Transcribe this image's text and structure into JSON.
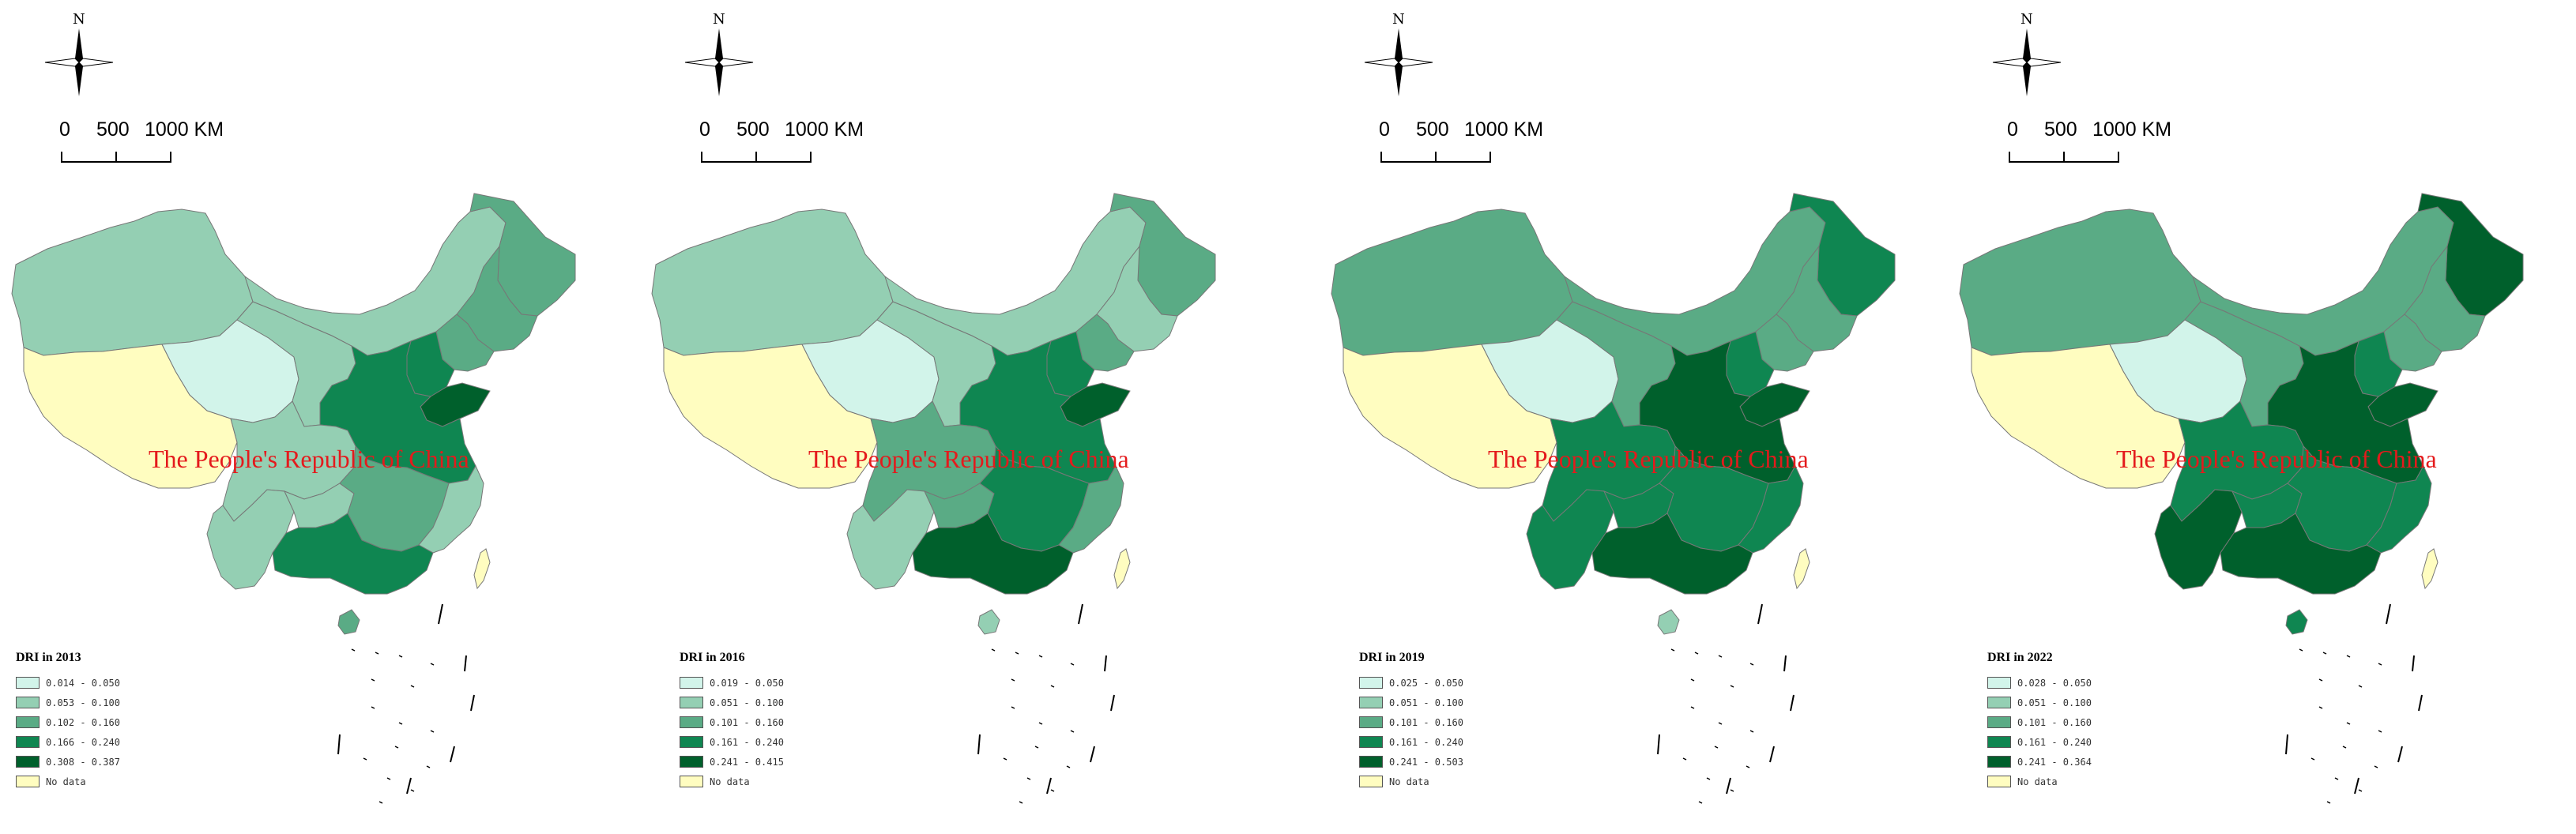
{
  "compass_label": "N",
  "scale": {
    "ticks": [
      "0",
      "500",
      "1000 KM"
    ]
  },
  "country_label": "The People's Republic of China",
  "colors": {
    "class1": "#d2f4ea",
    "class2": "#94cfb3",
    "class3": "#5aab85",
    "class4": "#0f8651",
    "class5": "#00602c",
    "nodata": "#fffdc0",
    "outline": "#777777"
  },
  "maps": [
    {
      "legend_title": "DRI in 2013",
      "legend_items": [
        "0.014 - 0.050",
        "0.053 - 0.100",
        "0.102 - 0.160",
        "0.166 - 0.240",
        "0.308 - 0.387",
        "No data"
      ],
      "regions": {
        "xinjiang": 2,
        "tibet": 0,
        "qinghai": 1,
        "gansu": 2,
        "inner_mongolia": 2,
        "heilongjiang": 3,
        "jilin": 3,
        "liaoning": 3,
        "hebei": 4,
        "shandong": 5,
        "north_china_plain": 4,
        "sichuan": 2,
        "yunnan": 2,
        "guizhou": 2,
        "central": 3,
        "southeast": 2,
        "guangdong": 4,
        "taiwan": 0,
        "hainan": 3
      }
    },
    {
      "legend_title": "DRI in 2016",
      "legend_items": [
        "0.019 - 0.050",
        "0.051 - 0.100",
        "0.101 - 0.160",
        "0.161 - 0.240",
        "0.241 - 0.415",
        "No data"
      ],
      "regions": {
        "xinjiang": 2,
        "tibet": 0,
        "qinghai": 1,
        "gansu": 2,
        "inner_mongolia": 2,
        "heilongjiang": 3,
        "jilin": 2,
        "liaoning": 3,
        "hebei": 4,
        "shandong": 5,
        "north_china_plain": 4,
        "sichuan": 3,
        "yunnan": 2,
        "guizhou": 3,
        "central": 4,
        "southeast": 3,
        "guangdong": 5,
        "taiwan": 0,
        "hainan": 2
      }
    },
    {
      "legend_title": "DRI in 2019",
      "legend_items": [
        "0.025 - 0.050",
        "0.051 - 0.100",
        "0.101 - 0.160",
        "0.161 - 0.240",
        "0.241 - 0.503",
        "No data"
      ],
      "regions": {
        "xinjiang": 3,
        "tibet": 0,
        "qinghai": 1,
        "gansu": 3,
        "inner_mongolia": 3,
        "heilongjiang": 4,
        "jilin": 3,
        "liaoning": 3,
        "hebei": 4,
        "shandong": 5,
        "north_china_plain": 5,
        "sichuan": 4,
        "yunnan": 4,
        "guizhou": 4,
        "central": 4,
        "southeast": 4,
        "guangdong": 5,
        "taiwan": 0,
        "hainan": 2
      }
    },
    {
      "legend_title": "DRI in 2022",
      "legend_items": [
        "0.028 - 0.050",
        "0.051 - 0.100",
        "0.101 - 0.160",
        "0.161 - 0.240",
        "0.241 - 0.364",
        "No data"
      ],
      "regions": {
        "xinjiang": 3,
        "tibet": 0,
        "qinghai": 1,
        "gansu": 3,
        "inner_mongolia": 3,
        "heilongjiang": 5,
        "jilin": 3,
        "liaoning": 3,
        "hebei": 4,
        "shandong": 5,
        "north_china_plain": 5,
        "sichuan": 4,
        "yunnan": 5,
        "guizhou": 4,
        "central": 4,
        "southeast": 4,
        "guangdong": 5,
        "taiwan": 0,
        "hainan": 4
      }
    }
  ]
}
